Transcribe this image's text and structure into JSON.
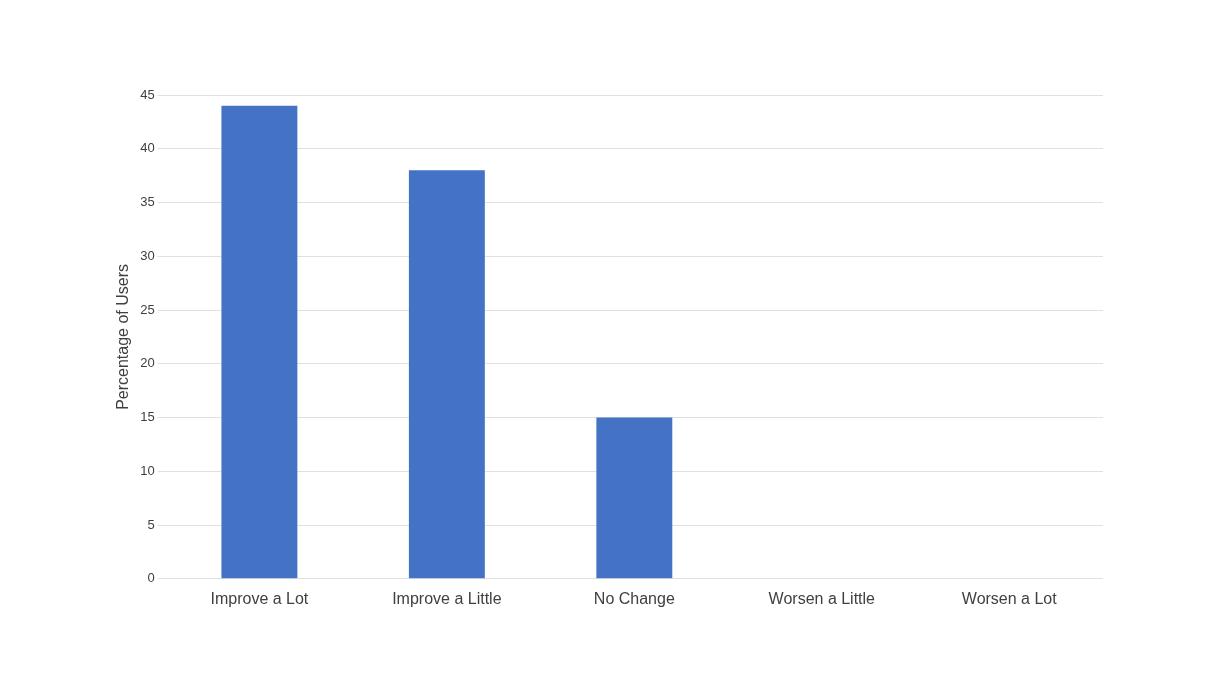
{
  "chart_data": {
    "type": "bar",
    "ylabel": "Percentage of Users",
    "categories": [
      "Improve a Lot",
      "Improve a Little",
      "No Change",
      "Worsen a Little",
      "Worsen a Lot"
    ],
    "values": [
      44,
      38,
      15,
      0,
      0
    ],
    "color": "#4472c4",
    "ylim": [
      0,
      45
    ],
    "yticks": [
      0,
      5,
      10,
      15,
      20,
      25,
      30,
      35,
      40,
      45
    ],
    "grid": "y"
  }
}
